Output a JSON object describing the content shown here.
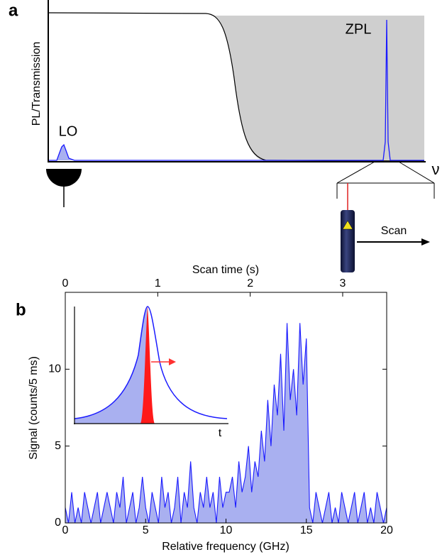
{
  "panel_a": {
    "panel_label": "a",
    "y_label": "PL/Transmission",
    "lo_label": "LO",
    "zpl_label": "ZPL",
    "x_label": "ν",
    "scan_label": "Scan"
  },
  "chart_data": {
    "type": "line",
    "panel_label": "b",
    "xlabel": "Relative frequency (GHz)",
    "ylabel": "Signal (counts/5 ms)",
    "x2label": "Scan time (s)",
    "inset_x_label": "t",
    "color": "#1a1aff",
    "fill_color": "#a9b0f0",
    "xlim": [
      0,
      20
    ],
    "xticks": [
      0,
      5,
      10,
      15,
      20
    ],
    "ylim": [
      0,
      15
    ],
    "yticks": [
      0,
      5,
      10
    ],
    "x2lim": [
      0,
      3.476
    ],
    "x2ticks": [
      0,
      1,
      2,
      3
    ],
    "x": [
      0,
      0.2,
      0.4,
      0.6,
      0.8,
      1,
      1.2,
      1.4,
      1.6,
      1.8,
      2,
      2.2,
      2.4,
      2.6,
      2.8,
      3,
      3.2,
      3.4,
      3.6,
      3.8,
      4,
      4.2,
      4.4,
      4.6,
      4.8,
      5,
      5.2,
      5.4,
      5.6,
      5.8,
      6,
      6.2,
      6.4,
      6.6,
      6.8,
      7,
      7.2,
      7.4,
      7.6,
      7.8,
      8,
      8.2,
      8.4,
      8.6,
      8.8,
      9,
      9.2,
      9.4,
      9.6,
      9.8,
      10,
      10.2,
      10.4,
      10.6,
      10.8,
      11,
      11.2,
      11.4,
      11.6,
      11.8,
      12,
      12.2,
      12.4,
      12.6,
      12.8,
      13,
      13.2,
      13.4,
      13.6,
      13.8,
      14,
      14.2,
      14.4,
      14.6,
      14.8,
      15,
      15.2,
      15.4,
      15.6,
      15.8,
      16,
      16.2,
      16.4,
      16.6,
      16.8,
      17,
      17.2,
      17.4,
      17.6,
      17.8,
      18,
      18.2,
      18.4,
      18.6,
      18.8,
      19,
      19.2,
      19.4,
      19.6,
      19.8,
      20
    ],
    "values": [
      1,
      0,
      2,
      0,
      1,
      0,
      2,
      1,
      0,
      1,
      2,
      0,
      1,
      2,
      1,
      0,
      2,
      1,
      3,
      0,
      1,
      2,
      0,
      1,
      3,
      1,
      0,
      2,
      1,
      0,
      3,
      1,
      2,
      0,
      1,
      3,
      0,
      2,
      1,
      4,
      1,
      0,
      2,
      1,
      3,
      1,
      2,
      0,
      3,
      1,
      2,
      2,
      3,
      1,
      4,
      2,
      3,
      5,
      2,
      4,
      3,
      6,
      4,
      8,
      5,
      9,
      7,
      11,
      6,
      13,
      8,
      10,
      7,
      13,
      9,
      12,
      1,
      0,
      2,
      1,
      0,
      1,
      2,
      0,
      1,
      0,
      2,
      1,
      0,
      1,
      2,
      0,
      1,
      2,
      0,
      1,
      0,
      2,
      1,
      0,
      1
    ]
  }
}
